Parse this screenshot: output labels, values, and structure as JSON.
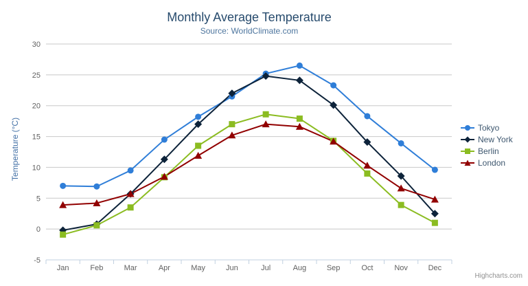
{
  "credit": "Highcharts.com",
  "colors": {
    "title": "#274b6d",
    "subtitle": "#4d759e",
    "axis_title": "#4572a7",
    "axis_labels": "#606060",
    "grid_line": "#c8c8c8",
    "axis_line": "#c0d0e0",
    "legend_text": "#3e576f",
    "menu_icon": "#666666"
  },
  "chart_data": {
    "type": "line",
    "title": "Monthly Average Temperature",
    "subtitle": "Source: WorldClimate.com",
    "xlabel": "",
    "ylabel": "Temperature (°C)",
    "categories": [
      "Jan",
      "Feb",
      "Mar",
      "Apr",
      "May",
      "Jun",
      "Jul",
      "Aug",
      "Sep",
      "Oct",
      "Nov",
      "Dec"
    ],
    "series": [
      {
        "name": "Tokyo",
        "color": "#2f7ed8",
        "marker": "circle",
        "values": [
          7.0,
          6.9,
          9.5,
          14.5,
          18.2,
          21.5,
          25.2,
          26.5,
          23.3,
          18.3,
          13.9,
          9.6
        ]
      },
      {
        "name": "New York",
        "color": "#0d233a",
        "marker": "diamond",
        "values": [
          -0.2,
          0.8,
          5.7,
          11.3,
          17.0,
          22.0,
          24.8,
          24.1,
          20.1,
          14.1,
          8.6,
          2.5
        ]
      },
      {
        "name": "Berlin",
        "color": "#8bbc21",
        "marker": "square",
        "values": [
          -0.9,
          0.6,
          3.5,
          8.4,
          13.5,
          17.0,
          18.6,
          17.9,
          14.3,
          9.0,
          3.9,
          1.0
        ]
      },
      {
        "name": "London",
        "color": "#910000",
        "marker": "triangle",
        "values": [
          3.9,
          4.2,
          5.7,
          8.5,
          11.9,
          15.2,
          17.0,
          16.6,
          14.2,
          10.3,
          6.6,
          4.8
        ]
      }
    ],
    "ylim": [
      -5,
      30
    ],
    "ytick_step": 5,
    "grid": true,
    "legend_position": "right"
  }
}
